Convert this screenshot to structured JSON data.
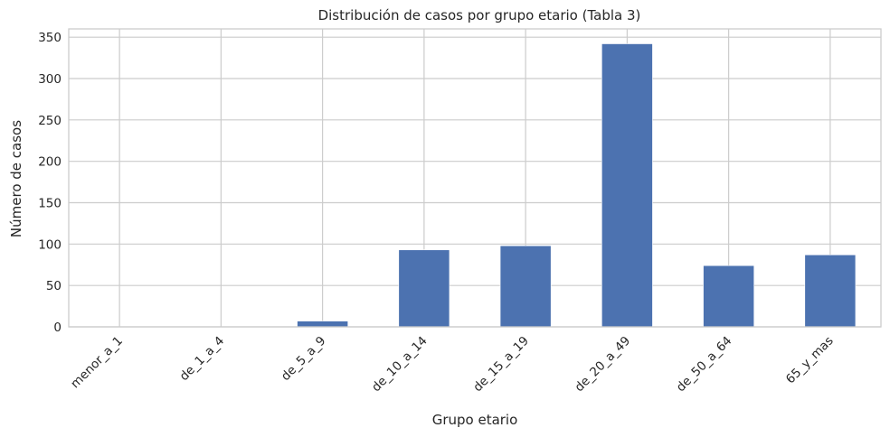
{
  "chart_data": {
    "type": "bar",
    "title": "Distribución de casos por grupo etario (Tabla 3)",
    "xlabel": "Grupo etario",
    "ylabel": "Número de casos",
    "categories": [
      "menor_a_1",
      "de_1_a_4",
      "de_5_a_9",
      "de_10_a_14",
      "de_15_a_19",
      "de_20_a_49",
      "de_50_a_64",
      "65_y_mas"
    ],
    "values": [
      0,
      0,
      7,
      93,
      98,
      342,
      74,
      87
    ],
    "ylim": [
      0,
      360
    ],
    "yticks": [
      0,
      50,
      100,
      150,
      200,
      250,
      300,
      350
    ],
    "grid": true,
    "bar_color": "#4c72b0",
    "grid_color": "#cccccc",
    "frame_color": "#cccccc"
  }
}
